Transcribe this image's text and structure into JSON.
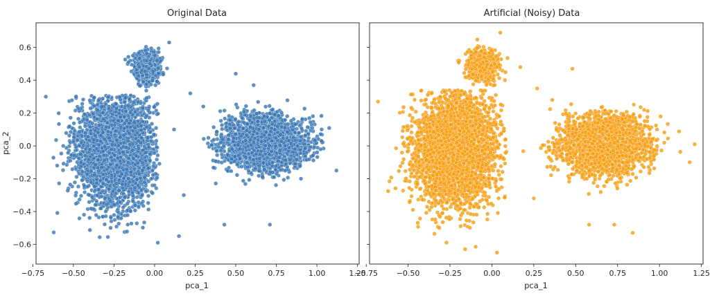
{
  "chart_data": [
    {
      "type": "scatter",
      "title": "Original Data",
      "xlabel": "pca_1",
      "ylabel": "pca_2",
      "xlim": [
        -0.73,
        1.26
      ],
      "ylim": [
        -0.72,
        0.75
      ],
      "xticks": [
        -0.75,
        -0.5,
        -0.25,
        0.0,
        0.25,
        0.5,
        0.75,
        1.0,
        1.25
      ],
      "xtick_labels": [
        "−0.75",
        "−0.50",
        "−0.25",
        "0.00",
        "0.25",
        "0.50",
        "0.75",
        "1.00",
        "1.25"
      ],
      "yticks": [
        -0.6,
        -0.4,
        -0.2,
        0.0,
        0.2,
        0.4,
        0.6
      ],
      "ytick_labels": [
        "−0.6",
        "−0.4",
        "−0.2",
        "0.0",
        "0.2",
        "0.4",
        "0.6"
      ],
      "grid": false,
      "color": "#3a78b4",
      "clusters": [
        {
          "cx": -0.24,
          "cy": -0.02,
          "sx": 0.22,
          "sy": 0.3,
          "n": 3200,
          "xmin": -0.66,
          "xmax": 0.03,
          "ymin": -0.58,
          "ymax": 0.31
        },
        {
          "cx": -0.05,
          "cy": 0.48,
          "sx": 0.07,
          "sy": 0.08,
          "n": 700,
          "xmin": -0.26,
          "xmax": 0.2,
          "ymin": 0.3,
          "ymax": 0.67
        },
        {
          "cx": 0.68,
          "cy": 0.02,
          "sx": 0.22,
          "sy": 0.14,
          "n": 2600,
          "xmin": 0.2,
          "xmax": 1.12,
          "ymin": -0.36,
          "ymax": 0.3
        }
      ],
      "outliers": [
        [
          -0.67,
          0.3
        ],
        [
          -0.6,
          -0.12
        ],
        [
          0.09,
          0.63
        ],
        [
          0.22,
          0.32
        ],
        [
          0.3,
          0.24
        ],
        [
          0.43,
          -0.48
        ],
        [
          0.5,
          0.44
        ],
        [
          0.61,
          0.37
        ],
        [
          0.71,
          -0.48
        ],
        [
          0.02,
          -0.59
        ],
        [
          0.15,
          -0.55
        ],
        [
          1.12,
          -0.15
        ],
        [
          0.12,
          0.1
        ],
        [
          0.18,
          -0.3
        ]
      ]
    },
    {
      "type": "scatter",
      "title": "Artificial (Noisy) Data",
      "xlabel": "pca_1",
      "ylabel": "",
      "xlim": [
        -0.73,
        1.26
      ],
      "ylim": [
        -0.72,
        0.75
      ],
      "xticks": [
        -0.75,
        -0.5,
        -0.25,
        0.0,
        0.25,
        0.5,
        0.75,
        1.0,
        1.25
      ],
      "xtick_labels": [
        "−0.75",
        "−0.50",
        "−0.25",
        "0.00",
        "0.25",
        "0.50",
        "0.75",
        "1.00",
        "1.25"
      ],
      "yticks": [
        -0.6,
        -0.4,
        -0.2,
        0.0,
        0.2,
        0.4,
        0.6
      ],
      "ytick_labels": [],
      "grid": false,
      "color": "#f59e12",
      "clusters": [
        {
          "cx": -0.22,
          "cy": -0.02,
          "sx": 0.22,
          "sy": 0.3,
          "n": 3400,
          "xmin": -0.68,
          "xmax": 0.09,
          "ymin": -0.62,
          "ymax": 0.34
        },
        {
          "cx": -0.06,
          "cy": 0.49,
          "sx": 0.08,
          "sy": 0.08,
          "n": 800,
          "xmin": -0.3,
          "xmax": 0.2,
          "ymin": 0.3,
          "ymax": 0.7
        },
        {
          "cx": 0.67,
          "cy": 0.01,
          "sx": 0.22,
          "sy": 0.15,
          "n": 2800,
          "xmin": 0.16,
          "xmax": 1.18,
          "ymin": -0.38,
          "ymax": 0.33
        }
      ],
      "outliers": [
        [
          -0.68,
          0.27
        ],
        [
          0.05,
          0.69
        ],
        [
          0.17,
          0.48
        ],
        [
          0.27,
          0.35
        ],
        [
          0.48,
          0.47
        ],
        [
          0.58,
          -0.48
        ],
        [
          0.73,
          -0.48
        ],
        [
          0.84,
          -0.53
        ],
        [
          1.21,
          0.01
        ],
        [
          1.18,
          -0.1
        ],
        [
          0.03,
          -0.65
        ],
        [
          -0.16,
          -0.63
        ],
        [
          0.36,
          0.28
        ],
        [
          0.25,
          -0.32
        ]
      ]
    }
  ]
}
